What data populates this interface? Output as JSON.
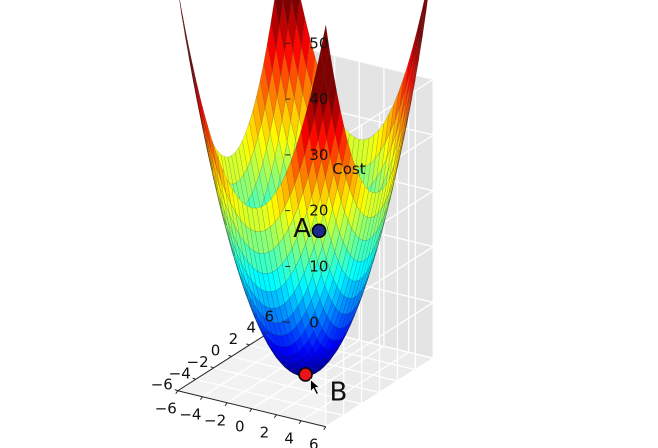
{
  "chart_data": {
    "type": "surface",
    "function": "x^2 + y^2",
    "zlabel": "Cost",
    "xlim": [
      -6,
      6
    ],
    "ylim": [
      -6,
      6
    ],
    "zlim": [
      0,
      50
    ],
    "x_ticks": [
      "−6",
      "−4",
      "−2",
      "0",
      "2",
      "4",
      "6"
    ],
    "y_ticks": [
      "−6",
      "−4",
      "−2",
      "0",
      "2",
      "4",
      "6"
    ],
    "z_ticks": [
      "0",
      "10",
      "20",
      "30",
      "40",
      "50"
    ],
    "colormap": "jet",
    "grid": true,
    "points": [
      {
        "label": "A",
        "x": -4,
        "y": 4,
        "z": 32,
        "color": "#1b2a8a"
      },
      {
        "label": "B",
        "x": 0,
        "y": 0,
        "z": 0,
        "color": "#e8141a"
      }
    ]
  }
}
